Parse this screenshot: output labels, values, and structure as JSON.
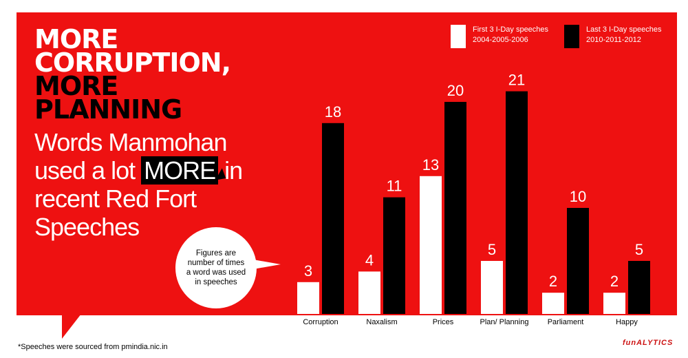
{
  "headline": {
    "line1": "MORE",
    "line2": "CORRUPTION,",
    "line3": "MORE",
    "line4": "PLANNING"
  },
  "subtitle": {
    "part1": "Words Manmohan used a lot",
    "highlight": "MORE",
    "part2": "in recent Red Fort Speeches"
  },
  "note": "Figures are number of times a word was used in speeches",
  "footnote": "*Speeches were sourced from pmindia.nic.in",
  "brand": "funALYTICS",
  "colors": {
    "panel": "#ee1111",
    "first_series": "#ffffff",
    "last_series": "#000000"
  },
  "chart_data": {
    "type": "bar",
    "title": "",
    "xlabel": "",
    "ylabel": "",
    "grid": false,
    "legend_position": "top-right",
    "categories": [
      "Corruption",
      "Naxalism",
      "Prices",
      "Plan/ Planning",
      "Parliament",
      "Happy"
    ],
    "series": [
      {
        "name": "First 3 I-Day speeches",
        "years": "2004-2005-2006",
        "color": "#ffffff",
        "values": [
          3,
          4,
          13,
          5,
          2,
          2
        ]
      },
      {
        "name": "Last 3 I-Day speeches",
        "years": "2010-2011-2012",
        "color": "#000000",
        "values": [
          18,
          11,
          20,
          21,
          10,
          5
        ]
      }
    ]
  }
}
